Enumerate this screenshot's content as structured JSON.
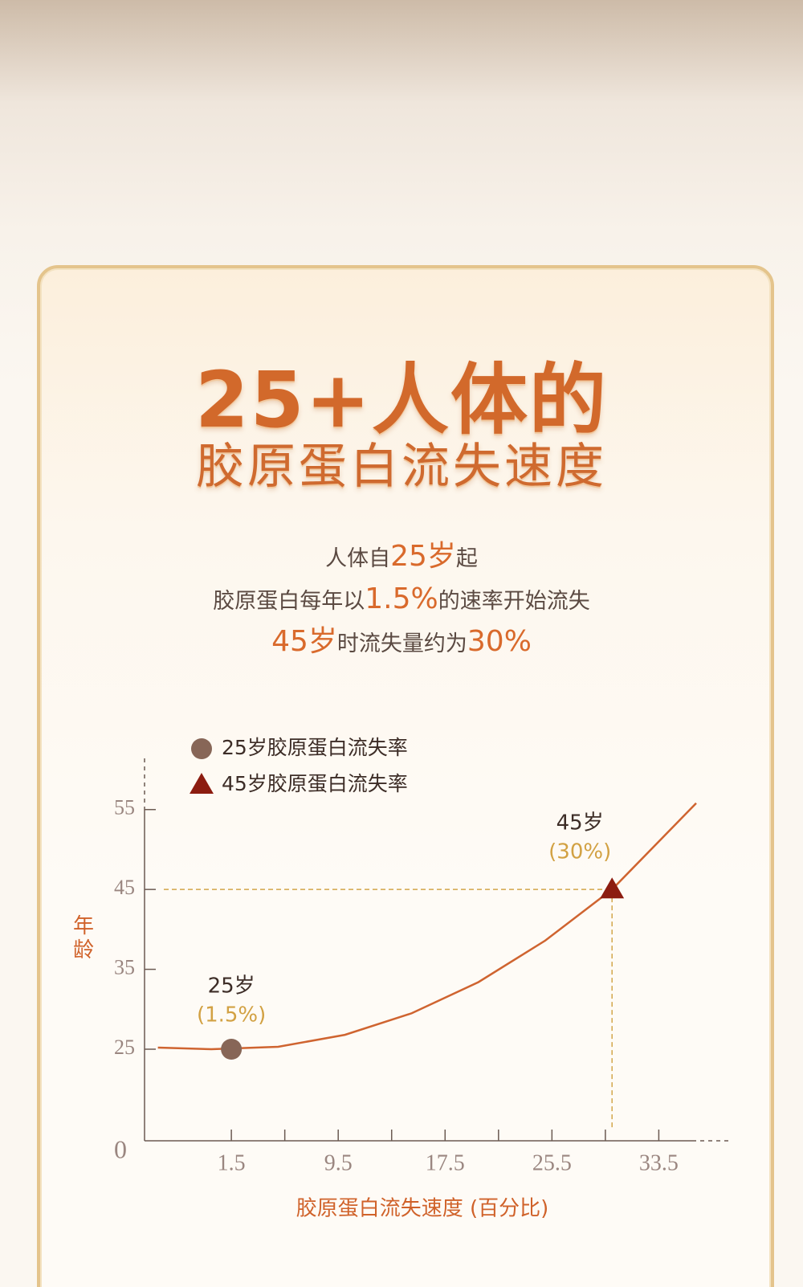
{
  "header": {
    "title_line1": "25+人体的",
    "title_line2": "胶原蛋白流失速度"
  },
  "intro": {
    "lines": [
      [
        {
          "text": "人体自",
          "highlight": false
        },
        {
          "text": "25岁",
          "highlight": true
        },
        {
          "text": "起",
          "highlight": false
        }
      ],
      [
        {
          "text": "胶原蛋白每年以",
          "highlight": false
        },
        {
          "text": "1.5%",
          "highlight": true
        },
        {
          "text": "的速率开始流失",
          "highlight": false
        }
      ],
      [
        {
          "text": "45岁",
          "highlight": true
        },
        {
          "text": "时流失量约为",
          "highlight": false
        },
        {
          "text": "30%",
          "highlight": true
        }
      ]
    ]
  },
  "chart_data": {
    "type": "scatter",
    "x_label": "胶原蛋白流失速度 (百分比)",
    "y_label": "年龄",
    "xlim": [
      -5,
      36
    ],
    "xticks": [
      1.5,
      9.5,
      17.5,
      25.5,
      33.5
    ],
    "x_minor_ticks": [
      5.5,
      13.5,
      21.5,
      29.5
    ],
    "ylim": [
      0,
      60
    ],
    "yticks": [
      0,
      25,
      35,
      45,
      55
    ],
    "y_axis_break": true,
    "curve": {
      "color": "#cf6430",
      "x": [
        -4,
        0,
        5,
        10,
        15,
        20,
        25,
        30,
        36.3
      ],
      "values": [
        25.2,
        25,
        25.3,
        26.8,
        29.5,
        33.4,
        38.6,
        45,
        55.8
      ]
    },
    "series": [
      {
        "name": "25岁胶原蛋白流失率",
        "color": "#876657",
        "marker": "circle",
        "x": [
          1.5
        ],
        "values": [
          25
        ],
        "label": "25岁",
        "rate_label": "(1.5%)"
      },
      {
        "name": "45岁胶原蛋白流失率",
        "color": "#8c1c10",
        "marker": "triangle",
        "x": [
          30
        ],
        "values": [
          45
        ],
        "label": "45岁",
        "rate_label": "(30%)"
      }
    ],
    "guide_color": "#d3a64a"
  }
}
